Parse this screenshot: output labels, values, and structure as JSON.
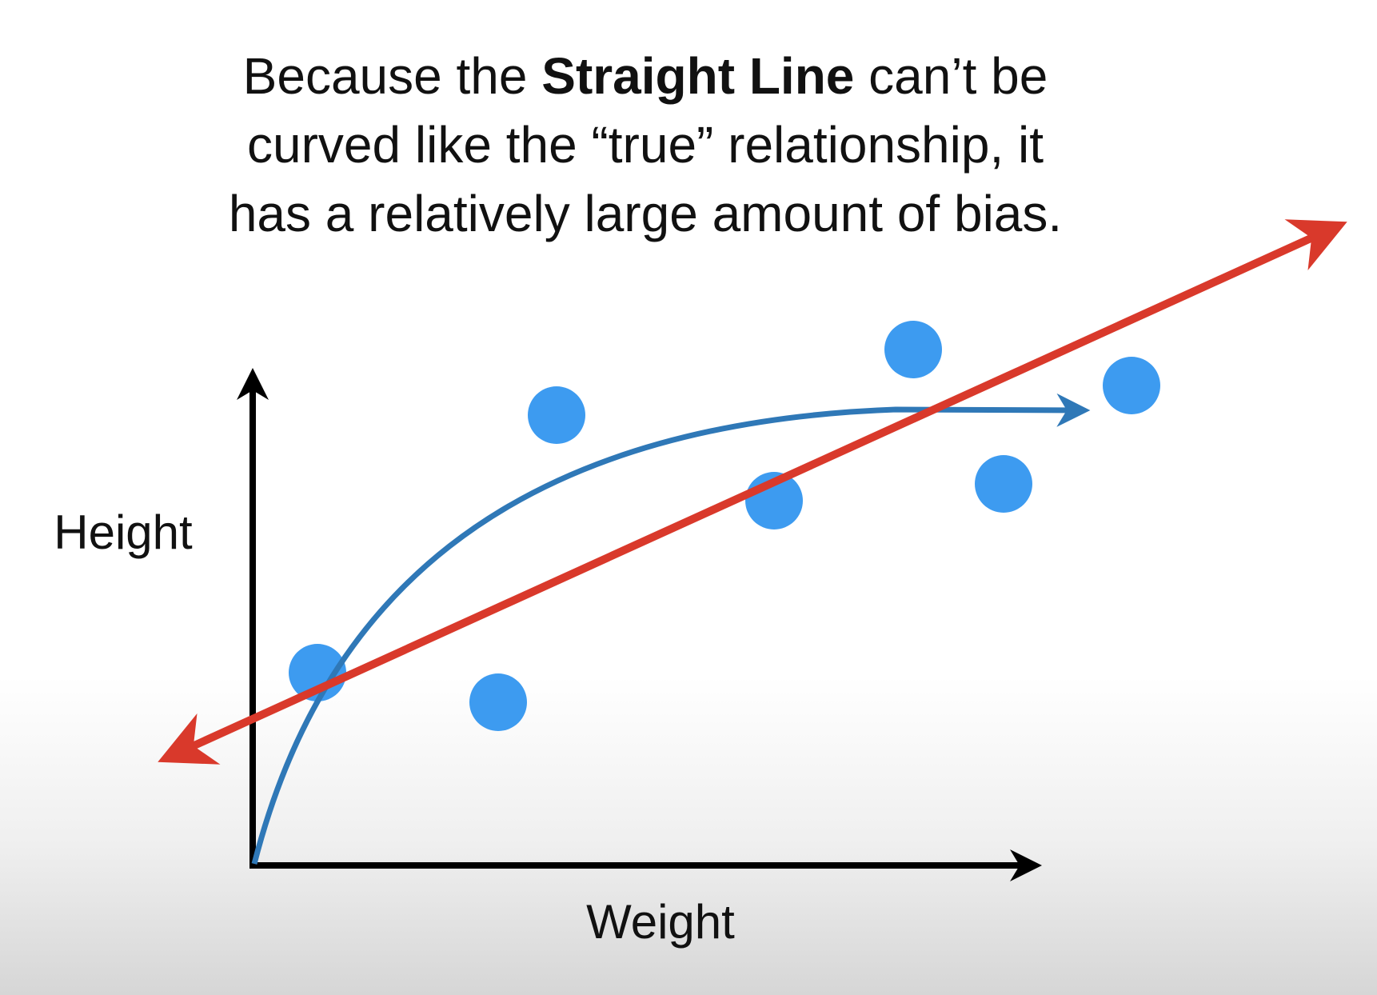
{
  "title": {
    "lines": [
      [
        "Because the",
        "Straight Line",
        "can’t be"
      ],
      [
        "curved like the “true” relationship, it"
      ],
      [
        "has a relatively large amount of bias."
      ]
    ]
  },
  "axes": {
    "y_label": "Height",
    "x_label": "Weight"
  }
}
